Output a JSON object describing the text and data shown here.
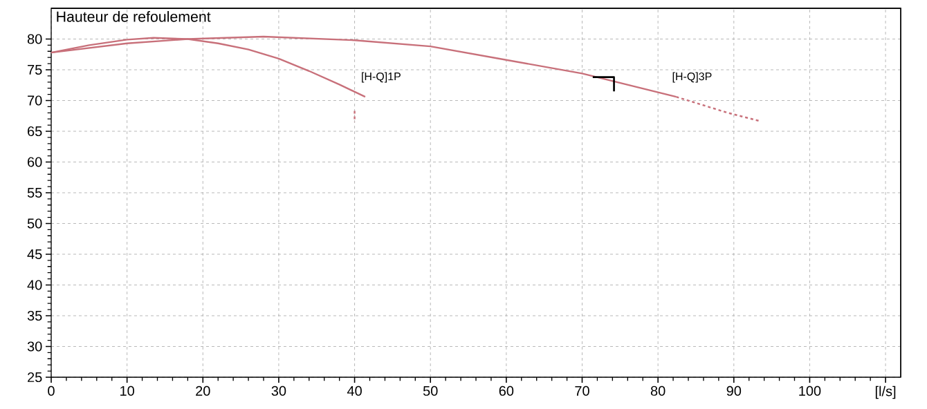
{
  "chart_data": {
    "type": "line",
    "title": "Hauteur de refoulement",
    "xlim": [
      0,
      112
    ],
    "ylim": [
      25,
      85
    ],
    "xticks": [
      0,
      10,
      20,
      30,
      40,
      50,
      60,
      70,
      80,
      90,
      100,
      {
        "value": 110,
        "label": "[l/s]"
      }
    ],
    "yticks": [
      25,
      30,
      35,
      40,
      45,
      50,
      55,
      60,
      65,
      70,
      75,
      80
    ],
    "grid": true,
    "marker": "none",
    "line_style": "solid",
    "series": [
      {
        "name": "[H-Q]1P",
        "color": "#c8707a",
        "x": [
          0,
          5,
          10,
          13.5,
          18,
          22,
          26,
          30,
          34,
          38,
          41.4
        ],
        "values": [
          77.8,
          79.0,
          79.9,
          80.2,
          80.0,
          79.3,
          78.3,
          76.8,
          74.8,
          72.6,
          70.6
        ]
      },
      {
        "name": "[H-Q]3P",
        "color": "#c8707a",
        "x": [
          0,
          10,
          18,
          28,
          40,
          50,
          60,
          70,
          82.4
        ],
        "values": [
          77.8,
          79.3,
          80.0,
          80.4,
          79.8,
          78.8,
          76.6,
          74.4,
          70.6
        ]
      },
      {
        "color": "#c8707a",
        "line_style": "dashed",
        "x": [
          40,
          40
        ],
        "values": [
          68.3,
          66.5
        ]
      },
      {
        "color": "#c8707a",
        "line_style": "dashed",
        "x": [
          82.4,
          85.8,
          89.2,
          93.3
        ],
        "values": [
          70.6,
          69.3,
          68.0,
          66.7
        ]
      },
      {
        "color": "#000000",
        "x": [
          71.4,
          74.2,
          74.2
        ],
        "values": [
          73.8,
          73.8,
          71.5
        ]
      }
    ]
  }
}
